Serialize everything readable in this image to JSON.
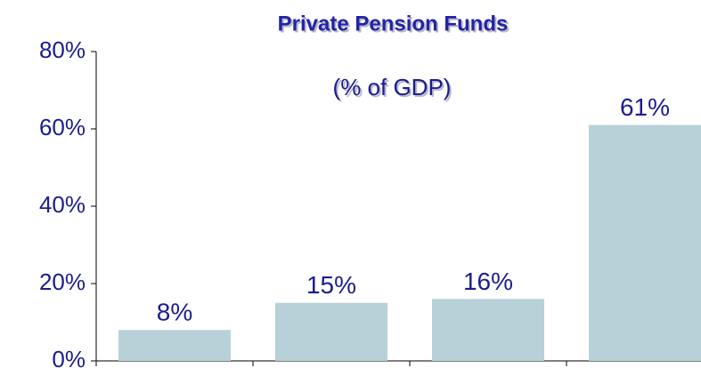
{
  "chart_data": {
    "type": "bar",
    "title": "Private Pension Funds",
    "subtitle": "(% of GDP)",
    "categories": [
      null,
      null,
      null,
      null
    ],
    "values": [
      8,
      15,
      16,
      61
    ],
    "value_labels": [
      "8%",
      "15%",
      "16%",
      "61%"
    ],
    "color": "#b8d0d8",
    "ylim": [
      0,
      80
    ],
    "yticks": [
      {
        "value": 0,
        "label": "0%"
      },
      {
        "value": 20,
        "label": "20%"
      },
      {
        "value": 40,
        "label": "40%"
      },
      {
        "value": 60,
        "label": "60%"
      },
      {
        "value": 80,
        "label": "80%"
      }
    ],
    "grid": false
  }
}
